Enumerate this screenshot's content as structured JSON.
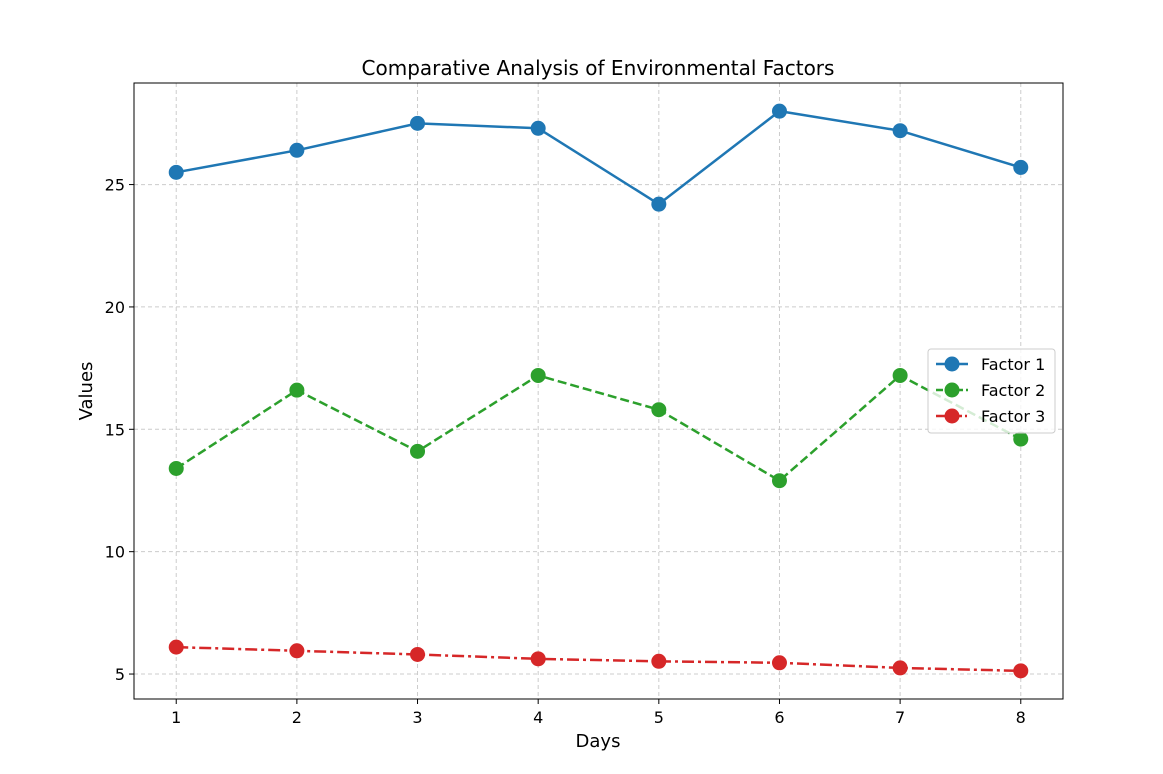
{
  "chart_data": {
    "type": "line",
    "title": "Comparative Analysis of Environmental Factors",
    "xlabel": "Days",
    "ylabel": "Values",
    "x": [
      1,
      2,
      3,
      4,
      5,
      6,
      7,
      8
    ],
    "xlim": [
      0.65,
      8.35
    ],
    "ylim": [
      3.98,
      29.15
    ],
    "xticks": [
      1,
      2,
      3,
      4,
      5,
      6,
      7,
      8
    ],
    "yticks": [
      5,
      10,
      15,
      20,
      25
    ],
    "grid": true,
    "legend_position": "center-right",
    "series": [
      {
        "name": "Factor 1",
        "color": "#1f77b4",
        "line_style": "solid",
        "marker": "circle",
        "values": [
          25.5,
          26.4,
          27.5,
          27.3,
          24.2,
          28.0,
          27.2,
          25.7
        ]
      },
      {
        "name": "Factor 2",
        "color": "#2ca02c",
        "line_style": "dashed",
        "marker": "circle",
        "values": [
          13.4,
          16.6,
          14.1,
          17.2,
          15.8,
          12.9,
          17.2,
          14.6
        ]
      },
      {
        "name": "Factor 3",
        "color": "#d62728",
        "line_style": "dashdot",
        "marker": "circle",
        "values": [
          6.1,
          5.95,
          5.8,
          5.62,
          5.52,
          5.46,
          5.25,
          5.13
        ]
      }
    ]
  }
}
